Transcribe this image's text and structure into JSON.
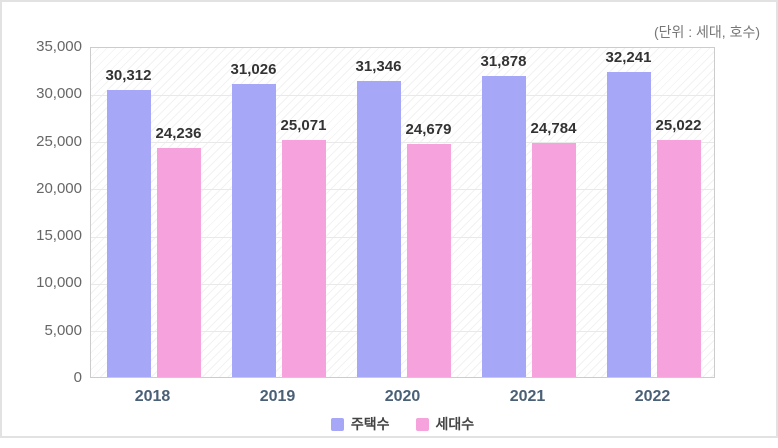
{
  "chart_data": {
    "type": "bar",
    "title": "",
    "unit_label": "(단위 : 세대, 호수)",
    "categories": [
      "2018",
      "2019",
      "2020",
      "2021",
      "2022"
    ],
    "series": [
      {
        "name": "주택수",
        "color": "#a7a7f7",
        "values": [
          30312,
          31026,
          31346,
          31878,
          32241
        ]
      },
      {
        "name": "세대수",
        "color": "#f6a2dc",
        "values": [
          24236,
          25071,
          24679,
          24784,
          25022
        ]
      }
    ],
    "value_labels": [
      [
        "30,312",
        "31,026",
        "31,346",
        "31,878",
        "32,241"
      ],
      [
        "24,236",
        "25,071",
        "24,679",
        "24,784",
        "25,022"
      ]
    ],
    "xlabel": "",
    "ylabel": "",
    "ylim": [
      0,
      35000
    ],
    "y_tick_step": 5000,
    "y_tick_labels": [
      "0",
      "5,000",
      "10,000",
      "15,000",
      "20,000",
      "25,000",
      "30,000",
      "35,000"
    ],
    "grid": "horizontal-major",
    "legend_position": "bottom-center",
    "plot_background": "diagonal-hatch"
  },
  "colors": {
    "bar_series_1": "#a7a7f7",
    "bar_series_2": "#f6a2dc",
    "gridline": "#e9e9e9",
    "plot_border": "#cccccc",
    "panel_border": "#e2e2e2",
    "value_label_text": "#333333",
    "y_tick_text": "#666666",
    "x_tick_text": "#4a6077",
    "unit_text": "#777777",
    "legend_text": "#444444"
  }
}
